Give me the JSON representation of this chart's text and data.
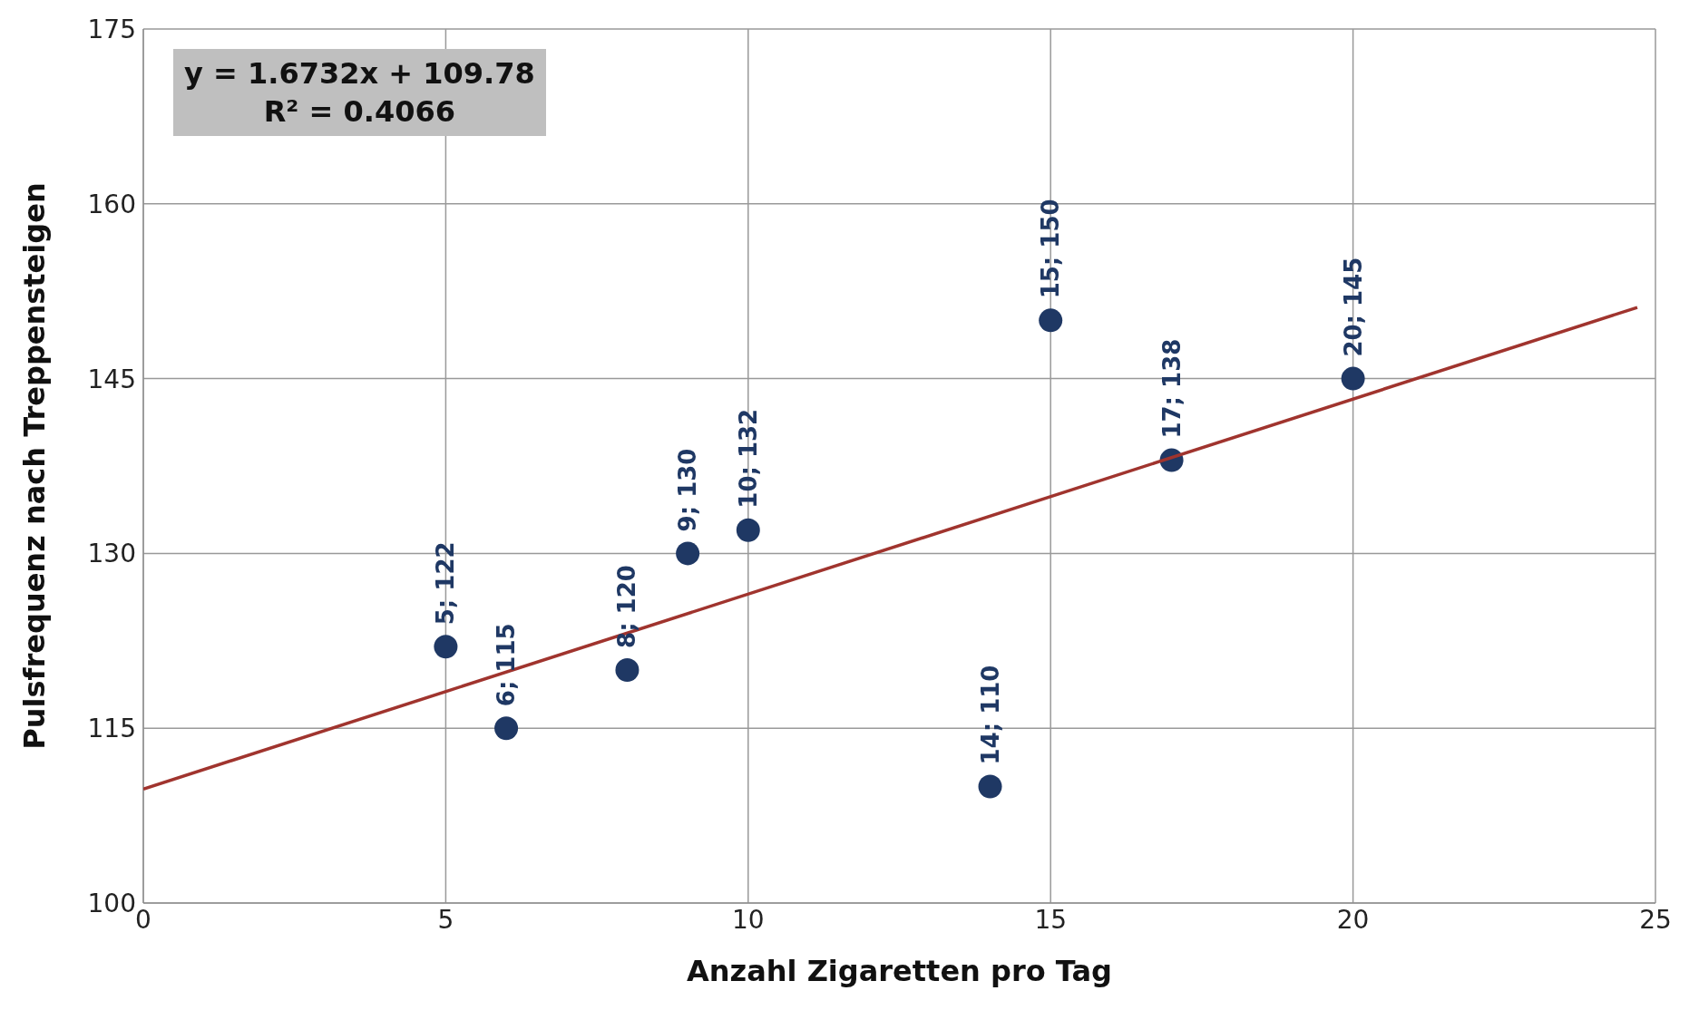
{
  "chart_data": {
    "type": "scatter",
    "xlabel": "Anzahl Zigaretten pro Tag",
    "ylabel": "Pulsfrequenz nach Treppensteigen",
    "annotations": [
      "y = 1.6732x + 109.78",
      "R² = 0.4066"
    ],
    "xlim": [
      0,
      25
    ],
    "xticks": [
      0,
      5,
      10,
      15,
      20,
      25
    ],
    "ylim": [
      100,
      175
    ],
    "yticks": [
      100,
      115,
      130,
      145,
      160,
      175
    ],
    "grid": true,
    "series": [
      {
        "type": "scatter",
        "color": "#1f3864",
        "marker": "circle",
        "x": [
          5,
          6,
          8,
          9,
          10,
          14,
          15,
          17,
          20
        ],
        "values": [
          122,
          115,
          120,
          130,
          132,
          110,
          150,
          138,
          145
        ],
        "value_labels": [
          "5; 122",
          "6; 115",
          "8; 120",
          "9; 130",
          "10; 132",
          "14; 110",
          "15; 150",
          "17; 138",
          "20; 145"
        ]
      },
      {
        "type": "line",
        "color": "#a0342e",
        "line_style": "solid",
        "x": [
          0,
          24.7
        ],
        "values": [
          109.78,
          151.11
        ]
      }
    ]
  }
}
